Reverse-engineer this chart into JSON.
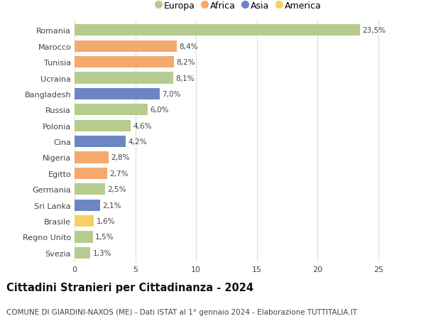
{
  "countries": [
    "Romania",
    "Marocco",
    "Tunisia",
    "Ucraina",
    "Bangladesh",
    "Russia",
    "Polonia",
    "Cina",
    "Nigeria",
    "Egitto",
    "Germania",
    "Sri Lanka",
    "Brasile",
    "Regno Unito",
    "Svezia"
  ],
  "values": [
    23.5,
    8.4,
    8.2,
    8.1,
    7.0,
    6.0,
    4.6,
    4.2,
    2.8,
    2.7,
    2.5,
    2.1,
    1.6,
    1.5,
    1.3
  ],
  "labels": [
    "23,5%",
    "8,4%",
    "8,2%",
    "8,1%",
    "7,0%",
    "6,0%",
    "4,6%",
    "4,2%",
    "2,8%",
    "2,7%",
    "2,5%",
    "2,1%",
    "1,6%",
    "1,5%",
    "1,3%"
  ],
  "continents": [
    "Europa",
    "Africa",
    "Africa",
    "Europa",
    "Asia",
    "Europa",
    "Europa",
    "Asia",
    "Africa",
    "Africa",
    "Europa",
    "Asia",
    "America",
    "Europa",
    "Europa"
  ],
  "colors": {
    "Europa": "#b5cc8e",
    "Africa": "#f4a96d",
    "Asia": "#6b86c2",
    "America": "#f7d060"
  },
  "legend_order": [
    "Europa",
    "Africa",
    "Asia",
    "America"
  ],
  "xlim": [
    0,
    27
  ],
  "xticks": [
    0,
    5,
    10,
    15,
    20,
    25
  ],
  "title": "Cittadini Stranieri per Cittadinanza - 2024",
  "subtitle": "COMUNE DI GIARDINI-NAXOS (ME) - Dati ISTAT al 1° gennaio 2024 - Elaborazione TUTTITALIA.IT",
  "background_color": "#ffffff",
  "grid_color": "#dddddd",
  "title_fontsize": 10.5,
  "subtitle_fontsize": 7.5,
  "label_fontsize": 7.5,
  "ytick_fontsize": 8,
  "xtick_fontsize": 8,
  "bar_height": 0.72,
  "legend_fontsize": 9
}
